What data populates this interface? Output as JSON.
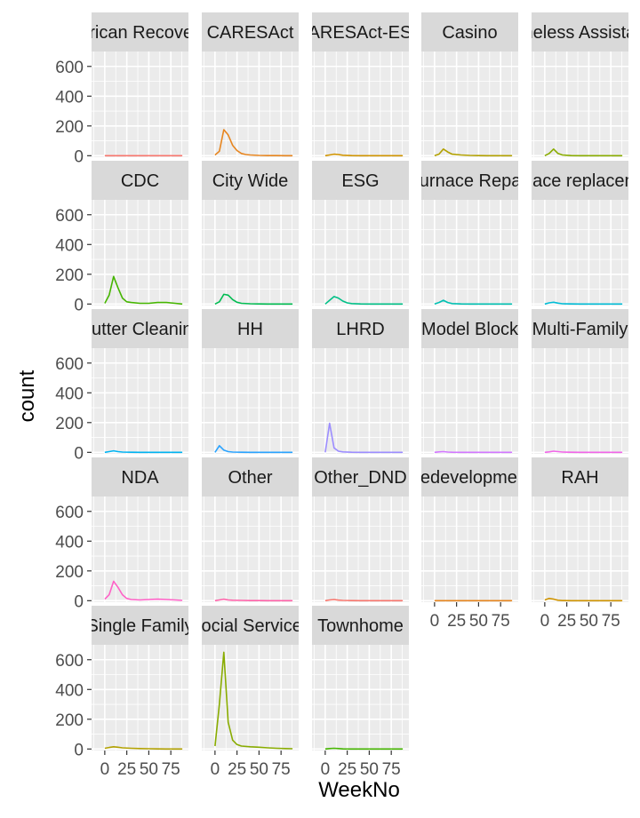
{
  "chart_data": {
    "type": "line",
    "facet": "wrap",
    "xlabel": "WeekNo",
    "ylabel": "count",
    "xlim": [
      -15,
      95
    ],
    "ylim": [
      -10,
      700
    ],
    "x_ticks": [
      0,
      25,
      50,
      75
    ],
    "x_tick_labels": [
      "0",
      "25",
      "50",
      "75"
    ],
    "y_ticks": [
      0,
      200,
      400,
      600
    ],
    "y_tick_labels": [
      "0",
      "200",
      "400",
      "600"
    ],
    "grid": true,
    "panel_background": "#ebebeb",
    "strip_background": "#d9d9d9",
    "facets": [
      {
        "label": "African Recovery",
        "color": "#F8766D",
        "x": [
          0,
          10,
          20,
          30,
          40,
          50,
          60,
          70,
          80,
          88
        ],
        "y": [
          0,
          0,
          0,
          0,
          0,
          0,
          0,
          0,
          0,
          0
        ]
      },
      {
        "label": "CARESAct",
        "color": "#E7851E",
        "x": [
          0,
          5,
          10,
          15,
          20,
          25,
          30,
          35,
          40,
          50,
          60,
          70,
          80,
          88
        ],
        "y": [
          5,
          30,
          175,
          140,
          70,
          35,
          15,
          8,
          5,
          2,
          1,
          1,
          0,
          0
        ]
      },
      {
        "label": "CARESAct-ESG",
        "color": "#D09400",
        "x": [
          0,
          5,
          10,
          15,
          20,
          30,
          40,
          50,
          60,
          70,
          80,
          88
        ],
        "y": [
          0,
          5,
          10,
          8,
          3,
          1,
          0,
          0,
          0,
          0,
          0,
          0
        ]
      },
      {
        "label": "Casino",
        "color": "#B2A100",
        "x": [
          0,
          5,
          10,
          15,
          20,
          30,
          40,
          50,
          60,
          70,
          80,
          88
        ],
        "y": [
          0,
          10,
          45,
          25,
          10,
          5,
          2,
          1,
          0,
          0,
          0,
          0
        ]
      },
      {
        "label": "Homeless Assistance",
        "color": "#89AC00",
        "x": [
          0,
          5,
          10,
          15,
          20,
          30,
          40,
          50,
          60,
          70,
          80,
          88
        ],
        "y": [
          0,
          15,
          45,
          15,
          5,
          1,
          0,
          0,
          0,
          0,
          0,
          0
        ]
      },
      {
        "label": "CDC",
        "color": "#45B500",
        "x": [
          0,
          5,
          10,
          15,
          20,
          25,
          30,
          40,
          50,
          60,
          70,
          80,
          88
        ],
        "y": [
          5,
          60,
          185,
          110,
          40,
          15,
          10,
          5,
          5,
          10,
          10,
          5,
          0
        ]
      },
      {
        "label": "City Wide",
        "color": "#00BC51",
        "x": [
          0,
          5,
          10,
          15,
          20,
          25,
          30,
          40,
          50,
          60,
          70,
          80,
          88
        ],
        "y": [
          0,
          15,
          65,
          60,
          30,
          12,
          5,
          2,
          1,
          0,
          0,
          0,
          0
        ]
      },
      {
        "label": "ESG",
        "color": "#00C087",
        "x": [
          0,
          5,
          10,
          15,
          20,
          25,
          30,
          40,
          50,
          60,
          70,
          80,
          88
        ],
        "y": [
          0,
          25,
          50,
          40,
          20,
          8,
          3,
          1,
          0,
          0,
          0,
          0,
          0
        ]
      },
      {
        "label": "Furnace Repair",
        "color": "#00C0B2",
        "x": [
          0,
          5,
          10,
          15,
          20,
          30,
          40,
          50,
          60,
          70,
          80,
          88
        ],
        "y": [
          0,
          10,
          25,
          10,
          3,
          1,
          0,
          0,
          0,
          0,
          0,
          0
        ]
      },
      {
        "label": "Furnace replacement",
        "color": "#00BCD6",
        "x": [
          0,
          5,
          10,
          15,
          20,
          30,
          40,
          50,
          60,
          70,
          80,
          88
        ],
        "y": [
          0,
          8,
          12,
          6,
          2,
          1,
          0,
          0,
          0,
          0,
          0,
          0
        ]
      },
      {
        "label": "Gutter Cleaning",
        "color": "#00B3F2",
        "x": [
          0,
          5,
          10,
          15,
          20,
          30,
          40,
          50,
          60,
          70,
          80,
          88
        ],
        "y": [
          0,
          5,
          10,
          5,
          2,
          1,
          0,
          0,
          0,
          0,
          0,
          0
        ]
      },
      {
        "label": "HH",
        "color": "#29A3FF",
        "x": [
          0,
          5,
          10,
          15,
          20,
          30,
          40,
          50,
          60,
          70,
          80,
          88
        ],
        "y": [
          0,
          45,
          15,
          5,
          2,
          1,
          0,
          0,
          0,
          0,
          0,
          0
        ]
      },
      {
        "label": "LHRD",
        "color": "#9C8DFF",
        "x": [
          0,
          5,
          10,
          15,
          20,
          30,
          40,
          50,
          60,
          70,
          80,
          88
        ],
        "y": [
          0,
          195,
          30,
          8,
          3,
          1,
          0,
          0,
          0,
          0,
          0,
          0
        ]
      },
      {
        "label": "Model Block",
        "color": "#D277FF",
        "x": [
          0,
          5,
          10,
          15,
          20,
          30,
          40,
          50,
          60,
          70,
          80,
          88
        ],
        "y": [
          0,
          3,
          5,
          2,
          1,
          0,
          0,
          0,
          0,
          0,
          0,
          0
        ]
      },
      {
        "label": "Multi-Family",
        "color": "#F166E8",
        "x": [
          0,
          5,
          10,
          15,
          20,
          30,
          40,
          50,
          60,
          70,
          80,
          88
        ],
        "y": [
          0,
          3,
          8,
          5,
          2,
          1,
          0,
          0,
          0,
          0,
          0,
          0
        ]
      },
      {
        "label": "NDA",
        "color": "#FF61C7",
        "x": [
          0,
          5,
          10,
          15,
          20,
          25,
          30,
          40,
          50,
          60,
          70,
          80,
          88
        ],
        "y": [
          10,
          40,
          130,
          90,
          40,
          15,
          8,
          5,
          8,
          10,
          8,
          5,
          2
        ]
      },
      {
        "label": "Other",
        "color": "#FF62A9",
        "x": [
          0,
          5,
          10,
          15,
          20,
          30,
          40,
          50,
          60,
          70,
          80,
          88
        ],
        "y": [
          0,
          5,
          10,
          5,
          3,
          2,
          1,
          1,
          0,
          0,
          0,
          0
        ]
      },
      {
        "label": "Other_DND",
        "color": "#F8766D",
        "x": [
          0,
          5,
          10,
          15,
          20,
          30,
          40,
          50,
          60,
          70,
          80,
          88
        ],
        "y": [
          0,
          5,
          8,
          4,
          2,
          1,
          0,
          0,
          0,
          0,
          0,
          0
        ]
      },
      {
        "label": "Redevelopment",
        "color": "#E7851E",
        "x": [
          0,
          10,
          20,
          30,
          40,
          50,
          60,
          70,
          80,
          88
        ],
        "y": [
          0,
          0,
          0,
          0,
          0,
          0,
          0,
          0,
          0,
          0
        ]
      },
      {
        "label": "RAH",
        "color": "#D09400",
        "x": [
          0,
          5,
          10,
          15,
          20,
          30,
          40,
          50,
          60,
          70,
          80,
          88
        ],
        "y": [
          5,
          15,
          10,
          3,
          1,
          0,
          0,
          0,
          0,
          0,
          0,
          0
        ]
      },
      {
        "label": "Single Family",
        "color": "#B2A100",
        "x": [
          0,
          5,
          10,
          15,
          20,
          30,
          40,
          50,
          60,
          70,
          80,
          88
        ],
        "y": [
          5,
          10,
          15,
          12,
          8,
          5,
          3,
          2,
          1,
          0,
          0,
          0
        ]
      },
      {
        "label": "Social Services",
        "color": "#89AC00",
        "x": [
          0,
          5,
          10,
          15,
          20,
          25,
          30,
          40,
          50,
          60,
          70,
          80,
          88
        ],
        "y": [
          20,
          300,
          650,
          180,
          60,
          30,
          20,
          15,
          12,
          8,
          5,
          3,
          2
        ]
      },
      {
        "label": "Townhome",
        "color": "#45B500",
        "x": [
          0,
          5,
          10,
          15,
          20,
          30,
          40,
          50,
          60,
          70,
          80,
          88
        ],
        "y": [
          0,
          3,
          5,
          3,
          1,
          0,
          0,
          0,
          0,
          0,
          0,
          0
        ]
      }
    ]
  }
}
